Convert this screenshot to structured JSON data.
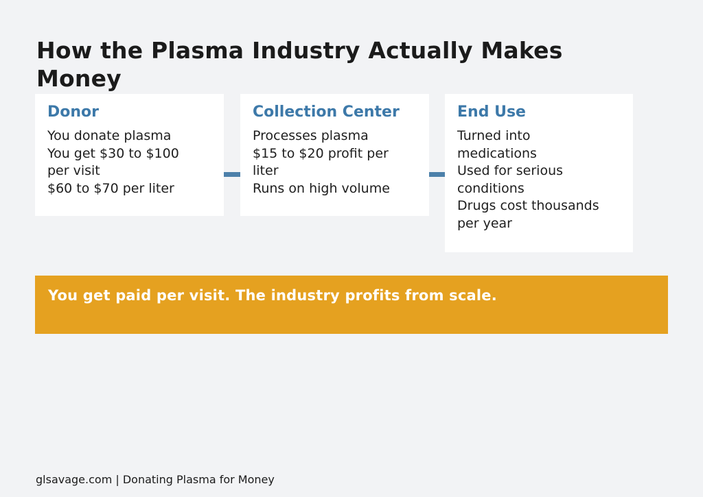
{
  "colors": {
    "background": "#F2F3F5",
    "card_background": "#FFFFFF",
    "accent_blue": "#3D79A9",
    "connector_blue": "#4C80AA",
    "banner_orange": "#E5A120",
    "text_dark": "#1B1B1B",
    "banner_text_color": "#FFFFFF"
  },
  "title": {
    "lines": [
      "How the Plasma Industry Actually Makes",
      "Money"
    ]
  },
  "cards": [
    {
      "title": "Donor",
      "items": [
        "You donate plasma",
        "You get $30 to $100\nper visit",
        "$60 to $70 per liter"
      ]
    },
    {
      "title": "Collection Center",
      "items": [
        "Processes plasma",
        "$15 to $20 profit per\nliter",
        "Runs on high volume"
      ]
    },
    {
      "title": "End Use",
      "items": [
        "Turned into\nmedications",
        "Used for serious\nconditions",
        "Drugs cost thousands\nper year"
      ]
    }
  ],
  "banner": {
    "text": "You get paid per visit. The industry profits from scale."
  },
  "footer": {
    "text": "glsavage.com | Donating Plasma for Money"
  }
}
